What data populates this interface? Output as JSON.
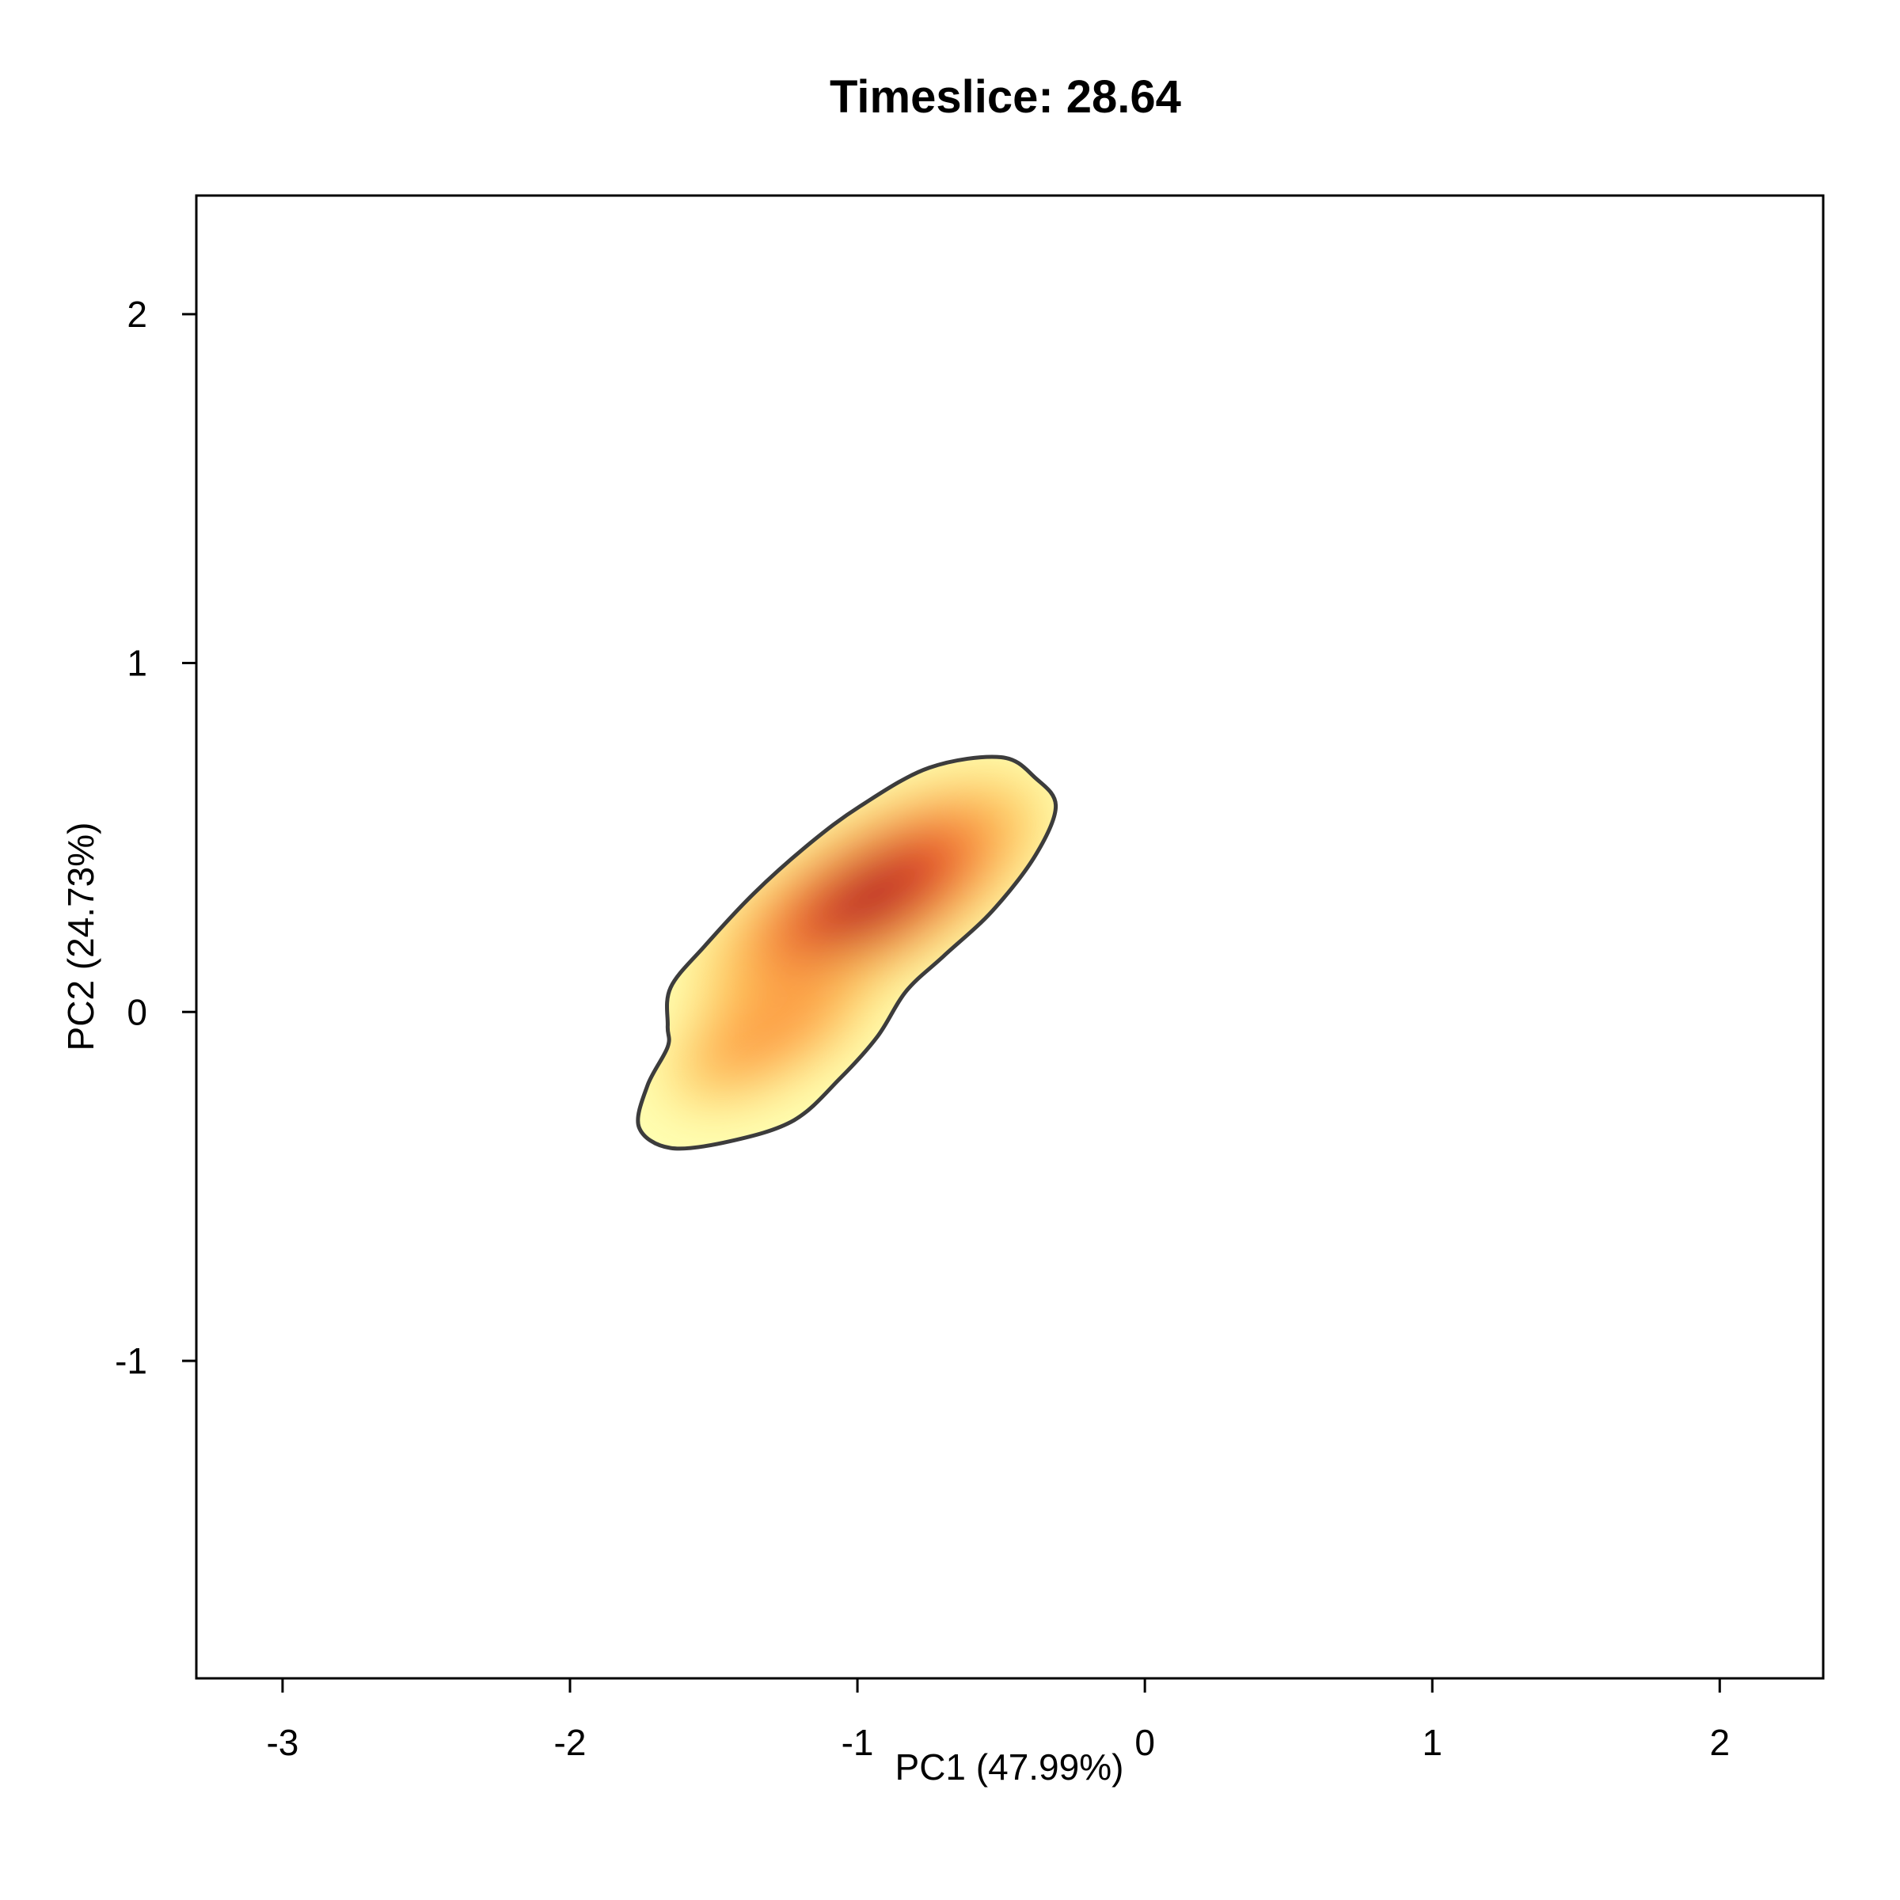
{
  "chart_data": {
    "type": "heatmap",
    "subtype": "2d-kernel-density",
    "title": "Timeslice: 28.64",
    "xlabel": "PC1 (47.99%)",
    "ylabel": "PC2 (24.73%)",
    "xlim": [
      -3.3,
      2.36
    ],
    "ylim": [
      -1.91,
      2.34
    ],
    "x_ticks": [
      -3,
      -2,
      -1,
      0,
      1,
      2
    ],
    "y_ticks": [
      -1,
      0,
      1,
      2
    ],
    "x_tick_labels": [
      "-3",
      "-2",
      "-1",
      "0",
      "1",
      "2"
    ],
    "y_tick_labels": [
      "-1",
      "0",
      "1",
      "2"
    ],
    "grid": false,
    "colormap": [
      "#ffffb2",
      "#fecc5c",
      "#fd8d3c",
      "#e31a1c",
      "#a50026"
    ],
    "outline_color": "#3c3c3c",
    "density_region": {
      "outline": [
        [
          -0.5,
          0.73
        ],
        [
          -0.38,
          0.67
        ],
        [
          -0.31,
          0.59
        ],
        [
          -0.38,
          0.45
        ],
        [
          -0.53,
          0.29
        ],
        [
          -0.7,
          0.16
        ],
        [
          -0.83,
          0.06
        ],
        [
          -0.93,
          -0.07
        ],
        [
          -1.06,
          -0.19
        ],
        [
          -1.22,
          -0.31
        ],
        [
          -1.44,
          -0.37
        ],
        [
          -1.65,
          -0.39
        ],
        [
          -1.76,
          -0.33
        ],
        [
          -1.73,
          -0.21
        ],
        [
          -1.66,
          -0.1
        ],
        [
          -1.66,
          -0.04
        ],
        [
          -1.65,
          0.07
        ],
        [
          -1.53,
          0.19
        ],
        [
          -1.36,
          0.34
        ],
        [
          -1.17,
          0.48
        ],
        [
          -0.99,
          0.59
        ],
        [
          -0.75,
          0.7
        ]
      ],
      "peaks": [
        {
          "x": -0.95,
          "y": 0.33,
          "level": 1.0
        },
        {
          "x": -1.3,
          "y": -0.05,
          "level": 0.55
        }
      ]
    }
  }
}
